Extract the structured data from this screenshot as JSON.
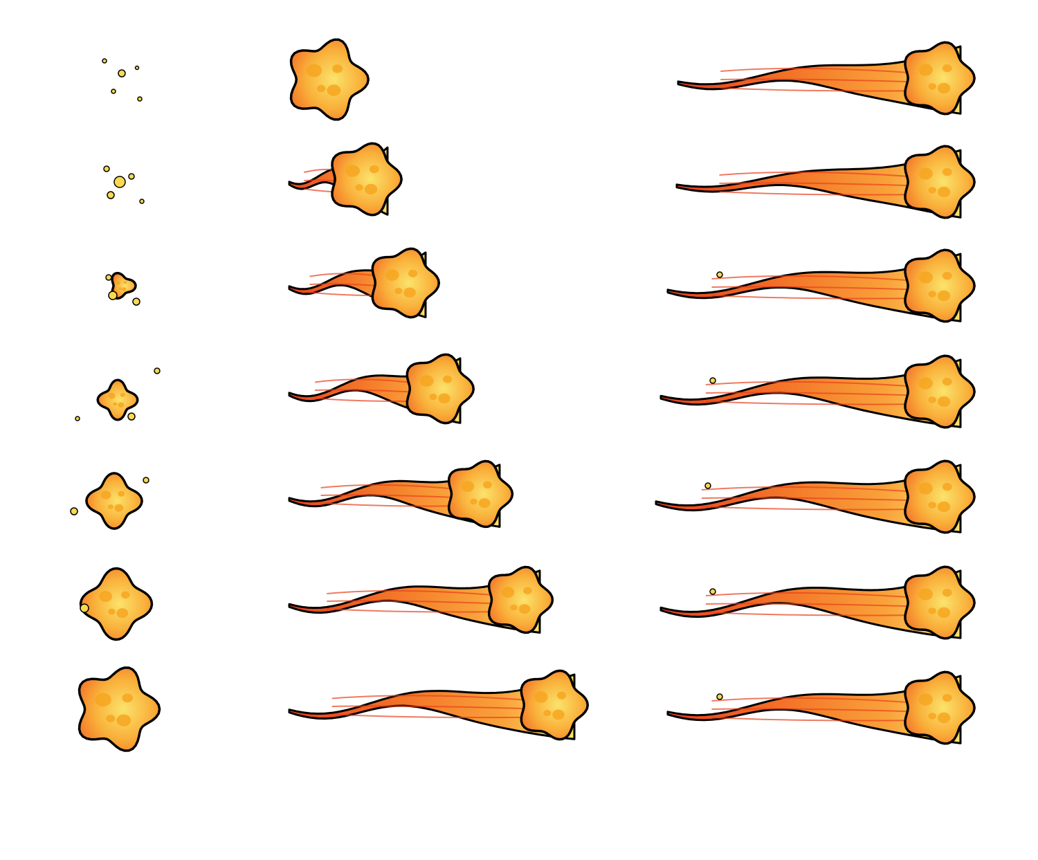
{
  "sprite_sheet": {
    "columns": 3,
    "frames_per_column": 7,
    "palette": {
      "outline": "#000000",
      "tail_red": "#e8401c",
      "mid_orange": "#f47a2a",
      "core_orange": "#f9a23a",
      "core_yellow": "#fbe36b",
      "spot_orange": "#f6a621",
      "spark_yellow": "#f9d94f",
      "background": "#ffffff"
    },
    "frames": [
      {
        "frame": 1,
        "stage": "sparks"
      },
      {
        "frame": 2,
        "stage": "sparks"
      },
      {
        "frame": 3,
        "stage": "small-blob"
      },
      {
        "frame": 4,
        "stage": "small-blob"
      },
      {
        "frame": 5,
        "stage": "blob"
      },
      {
        "frame": 6,
        "stage": "blob"
      },
      {
        "frame": 7,
        "stage": "star-blob"
      },
      {
        "frame": 8,
        "stage": "star-blob"
      },
      {
        "frame": 9,
        "stage": "short-trail"
      },
      {
        "frame": 10,
        "stage": "short-trail"
      },
      {
        "frame": 11,
        "stage": "medium-trail"
      },
      {
        "frame": 12,
        "stage": "medium-trail"
      },
      {
        "frame": 13,
        "stage": "long-trail"
      },
      {
        "frame": 14,
        "stage": "long-trail"
      },
      {
        "frame": 15,
        "stage": "full-trail"
      },
      {
        "frame": 16,
        "stage": "full-trail"
      },
      {
        "frame": 17,
        "stage": "full-trail"
      },
      {
        "frame": 18,
        "stage": "full-trail"
      },
      {
        "frame": 19,
        "stage": "full-trail"
      },
      {
        "frame": 20,
        "stage": "full-trail"
      },
      {
        "frame": 21,
        "stage": "full-trail"
      }
    ]
  }
}
